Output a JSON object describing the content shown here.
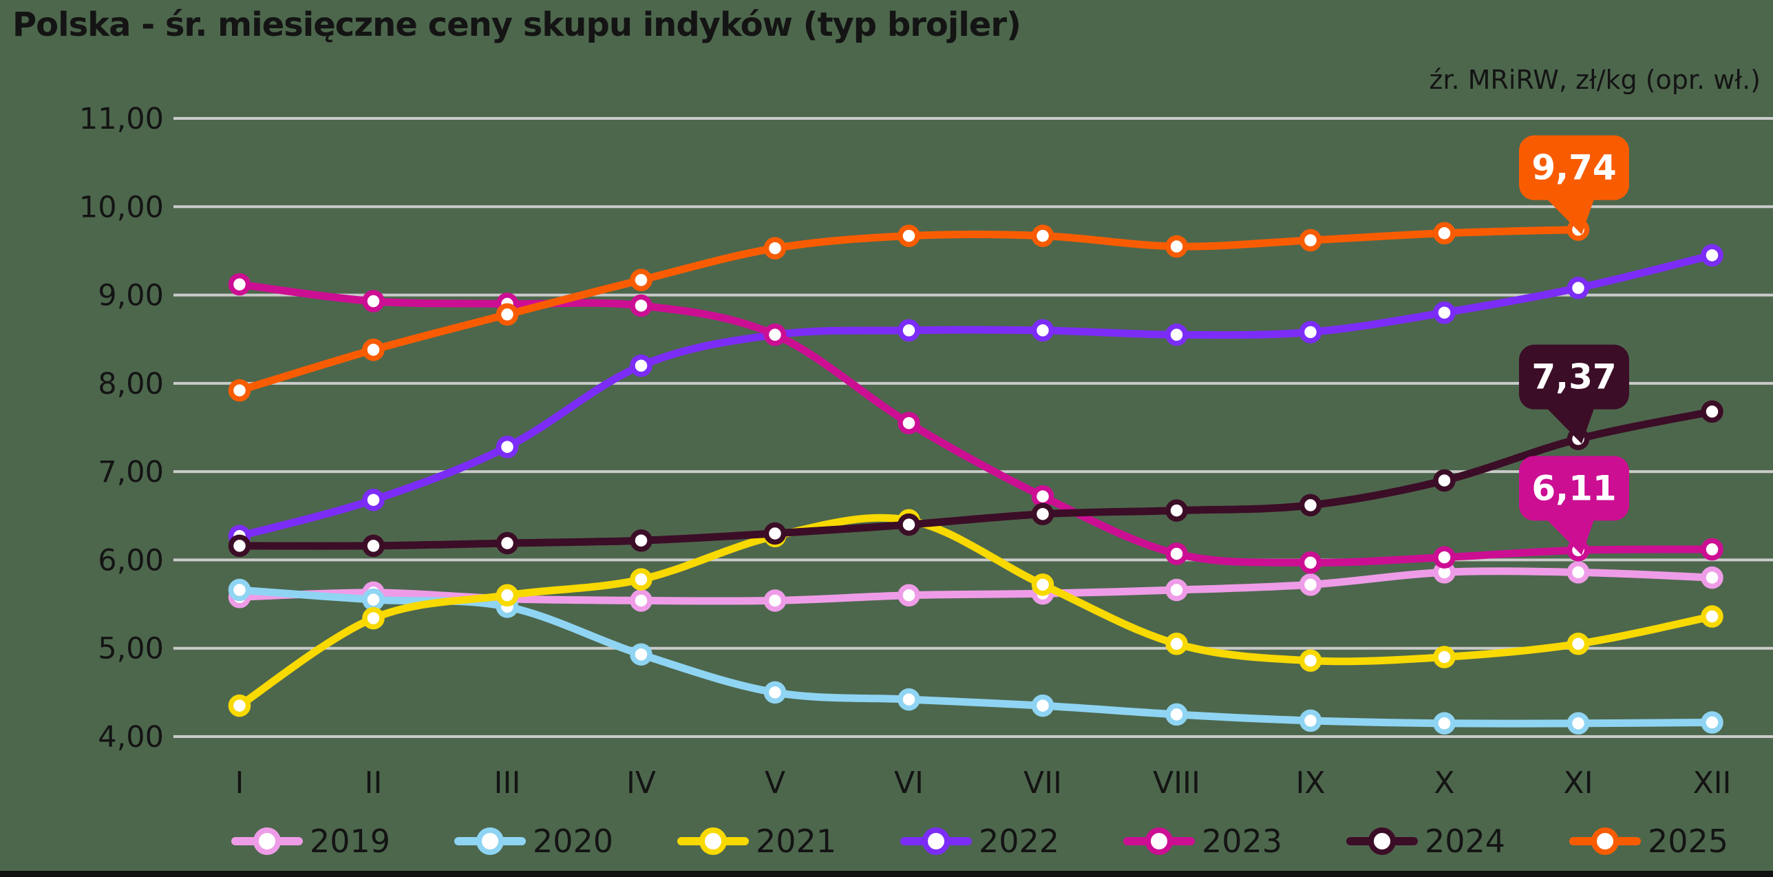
{
  "header": {
    "title": "Polska - śr. miesięczne ceny skupu indyków (typ brojler)",
    "source_note": "źr. MRiRW, zł/kg (opr. wł.)"
  },
  "chart_data": {
    "type": "line",
    "title": "Polska - śr. miesięczne ceny skupu indyków (typ brojler)",
    "unit": "zł/kg",
    "x_categories": [
      "I",
      "II",
      "III",
      "IV",
      "V",
      "VI",
      "VII",
      "VIII",
      "IX",
      "X",
      "XI",
      "XII"
    ],
    "y_tick_labels": [
      "11,00",
      "10,00",
      "9,00",
      "8,00",
      "7,00",
      "6,00",
      "5,00",
      "4,00"
    ],
    "ylim": [
      4,
      11
    ],
    "grid": true,
    "legend_position": "bottom",
    "series": [
      {
        "name": "2019",
        "color": "#ef9ce8",
        "values": [
          5.58,
          5.63,
          5.56,
          5.54,
          5.54,
          5.6,
          5.62,
          5.66,
          5.72,
          5.86,
          5.86,
          5.8
        ]
      },
      {
        "name": "2020",
        "color": "#8fd4f3",
        "values": [
          5.66,
          5.55,
          5.47,
          4.93,
          4.5,
          4.42,
          4.35,
          4.25,
          4.18,
          4.15,
          4.15,
          4.16
        ]
      },
      {
        "name": "2021",
        "color": "#f8d900",
        "values": [
          4.35,
          5.34,
          5.6,
          5.78,
          6.27,
          6.45,
          5.72,
          5.05,
          4.86,
          4.9,
          5.05,
          5.36
        ]
      },
      {
        "name": "2022",
        "color": "#7b2cf7",
        "values": [
          6.27,
          6.68,
          7.28,
          8.2,
          8.55,
          8.6,
          8.6,
          8.55,
          8.58,
          8.8,
          9.08,
          9.45
        ]
      },
      {
        "name": "2023",
        "color": "#cc0e93",
        "values": [
          9.12,
          8.93,
          8.9,
          8.88,
          8.55,
          7.55,
          6.72,
          6.07,
          5.97,
          6.03,
          6.11,
          6.12
        ]
      },
      {
        "name": "2024",
        "color": "#3c0d26",
        "values": [
          6.16,
          6.16,
          6.19,
          6.22,
          6.3,
          6.4,
          6.52,
          6.56,
          6.62,
          6.9,
          7.37,
          7.68
        ]
      },
      {
        "name": "2025",
        "color": "#f95c00",
        "values": [
          7.92,
          8.38,
          8.78,
          9.17,
          9.53,
          9.67,
          9.67,
          9.55,
          9.62,
          9.7,
          9.74,
          null
        ]
      }
    ],
    "callouts": [
      {
        "series": "2025",
        "month": "XI",
        "label": "9,74",
        "box_color": "#f95c00",
        "text_color": "#ffffff"
      },
      {
        "series": "2024",
        "month": "XI",
        "label": "7,37",
        "box_color": "#3c0d26",
        "text_color": "#ffffff"
      },
      {
        "series": "2023",
        "month": "XI",
        "label": "6,11",
        "box_color": "#cc0e93",
        "text_color": "#ffffff"
      }
    ]
  },
  "style": {
    "background": "#4d674d",
    "grid_color": "#cbcbcb",
    "text_color": "#141414",
    "marker_fill": "#ffffff"
  }
}
